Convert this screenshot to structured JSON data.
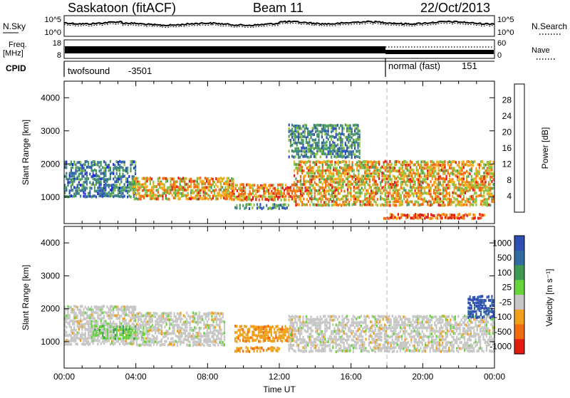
{
  "header": {
    "station": "Saskatoon (fitACF)",
    "beam": "Beam 11",
    "date": "22/Oct/2013"
  },
  "status_panels": {
    "nsky_label": "N.Sky",
    "nsky_ticks": [
      "10^5",
      "10^0"
    ],
    "nsearch_label": "N.Search",
    "nsearch_ticks": [
      "10^5",
      "10^0"
    ],
    "freq_label": "Freq.",
    "freq_unit": "[MHz]",
    "freq_ticks": [
      "18",
      "8"
    ],
    "nave_label": "Nave",
    "nave_ticks": [
      "60",
      "0"
    ],
    "cpid_label": "CPID",
    "modes": [
      {
        "name": "twofsound",
        "id": "-3501",
        "start_hour": 0,
        "end_hour": 18
      },
      {
        "name": "normal (fast)",
        "id": "151",
        "start_hour": 18,
        "end_hour": 24
      }
    ]
  },
  "chart_data": [
    {
      "type": "heatmap",
      "panel": "power",
      "ylabel": "Slant Range [km]",
      "xlabel": "",
      "xlim": [
        0,
        24
      ],
      "ylim": [
        200,
        4500
      ],
      "yticks": [
        1000,
        2000,
        3000,
        4000
      ],
      "colorbar": {
        "label": "Power [dB]",
        "ticks": [
          4,
          8,
          12,
          16,
          20,
          24,
          28
        ],
        "range": [
          0,
          32
        ],
        "colors": [
          "#1e1ee6",
          "#2d55b4",
          "#3a7e8a",
          "#4b9c5c",
          "#88c040",
          "#f4ac18",
          "#f46a10",
          "#e21c12"
        ]
      },
      "echo_regions": [
        {
          "t0": 0.0,
          "t1": 4.0,
          "r0": 1000,
          "r1": 2100,
          "value": 10
        },
        {
          "t0": 3.8,
          "t1": 9.5,
          "r0": 900,
          "r1": 1600,
          "value": 22
        },
        {
          "t0": 9.5,
          "t1": 12.6,
          "r0": 600,
          "r1": 800,
          "value": 12
        },
        {
          "t0": 9.0,
          "t1": 13.0,
          "r0": 900,
          "r1": 1400,
          "value": 24
        },
        {
          "t0": 12.8,
          "t1": 24.0,
          "r0": 700,
          "r1": 2100,
          "value": 22
        },
        {
          "t0": 17.8,
          "t1": 23.5,
          "r0": 300,
          "r1": 500,
          "value": 28
        },
        {
          "t0": 12.5,
          "t1": 16.5,
          "r0": 2200,
          "r1": 3200,
          "value": 12
        }
      ]
    },
    {
      "type": "heatmap",
      "panel": "velocity",
      "ylabel": "Slant Range [km]",
      "xlabel": "Time UT",
      "xlim": [
        0,
        24
      ],
      "ylim": [
        200,
        4500
      ],
      "xticks": [
        "00:00",
        "04:00",
        "08:00",
        "12:00",
        "16:00",
        "20:00",
        "00:00"
      ],
      "yticks": [
        1000,
        2000,
        3000,
        4000
      ],
      "colorbar": {
        "label": "Velocity [m s⁻¹]",
        "ticks": [
          "1000",
          "500",
          "100",
          "25",
          "-25",
          "-100",
          "-500",
          "-1000"
        ],
        "colors": [
          "#2e4eb0",
          "#306ea2",
          "#3e9a4e",
          "#66d43a",
          "#c6c6c4",
          "#f0a018",
          "#f06a0e",
          "#e21c12"
        ]
      },
      "echo_regions": [
        {
          "t0": 0.0,
          "t1": 4.0,
          "r0": 900,
          "r1": 2100,
          "value": "0"
        },
        {
          "t0": 1.5,
          "t1": 4.5,
          "r0": 1100,
          "r1": 1500,
          "value": "150"
        },
        {
          "t0": 4.0,
          "t1": 9.0,
          "r0": 900,
          "r1": 1900,
          "value": "0"
        },
        {
          "t0": 9.5,
          "t1": 12.8,
          "r0": 1000,
          "r1": 1500,
          "value": "-150"
        },
        {
          "t0": 9.5,
          "t1": 12.0,
          "r0": 650,
          "r1": 850,
          "value": "-150"
        },
        {
          "t0": 12.5,
          "t1": 24.0,
          "r0": 700,
          "r1": 1800,
          "value": "0"
        },
        {
          "t0": 22.5,
          "t1": 24.0,
          "r0": 1700,
          "r1": 2400,
          "value": "700"
        }
      ]
    }
  ]
}
